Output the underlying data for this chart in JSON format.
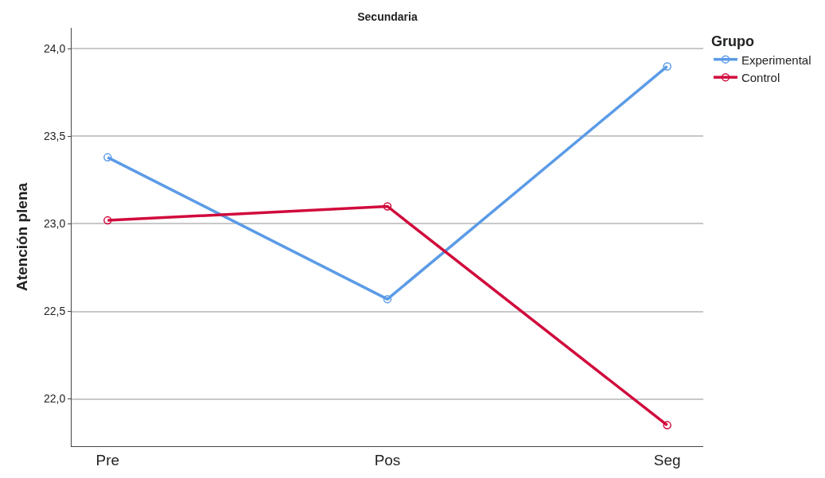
{
  "chart_data": {
    "type": "line",
    "title": "Secundaria",
    "ylabel": "Atención plena",
    "legend_title": "Grupo",
    "categories": [
      "Pre",
      "Pos",
      "Seg"
    ],
    "series": [
      {
        "name": "Experimental",
        "color": "#5b9be6",
        "values": [
          23.38,
          22.57,
          23.9
        ]
      },
      {
        "name": "Control",
        "color": "#d10a3c",
        "values": [
          23.02,
          23.1,
          21.85
        ]
      }
    ],
    "ylim": [
      21.73,
      24.12
    ],
    "yticks": [
      {
        "value": 22.0,
        "label": "22,0"
      },
      {
        "value": 22.5,
        "label": "22,5"
      },
      {
        "value": 23.0,
        "label": "23,0"
      },
      {
        "value": 23.5,
        "label": "23,5"
      },
      {
        "value": 24.0,
        "label": "24,0"
      }
    ],
    "grid": "y",
    "legend": "top right",
    "marker": "circle",
    "line_style": "solid"
  }
}
